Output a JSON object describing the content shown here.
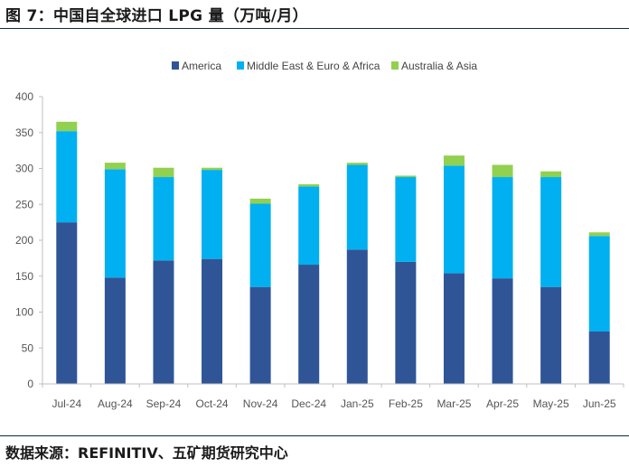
{
  "title": "图 7：中国自全球进口 LPG 量（万吨/月）",
  "source": "数据来源：REFINITIV、五矿期货研究中心",
  "chart_data": {
    "type": "bar",
    "stacked": true,
    "title": "中国自全球进口 LPG 量（万吨/月）",
    "xlabel": "",
    "ylabel": "",
    "ylim": [
      0,
      400
    ],
    "yticks": [
      0,
      50,
      100,
      150,
      200,
      250,
      300,
      350,
      400
    ],
    "grid": false,
    "legend_position": "top-center",
    "categories": [
      "Jul-24",
      "Aug-24",
      "Sep-24",
      "Oct-24",
      "Nov-24",
      "Dec-24",
      "Jan-25",
      "Feb-25",
      "Mar-25",
      "Apr-25",
      "May-25",
      "Jun-25"
    ],
    "series": [
      {
        "name": "America",
        "color": "#2f5597",
        "values": [
          225,
          148,
          172,
          174,
          135,
          166,
          187,
          170,
          154,
          147,
          135,
          73
        ]
      },
      {
        "name": "Middle East & Euro & Africa",
        "color": "#00b0f0",
        "values": [
          127,
          151,
          116,
          124,
          116,
          109,
          118,
          118,
          150,
          141,
          153,
          133
        ]
      },
      {
        "name": "Australia & Asia",
        "color": "#92d050",
        "values": [
          13,
          9,
          13,
          3,
          7,
          3,
          3,
          2,
          14,
          17,
          8,
          5
        ]
      }
    ]
  }
}
